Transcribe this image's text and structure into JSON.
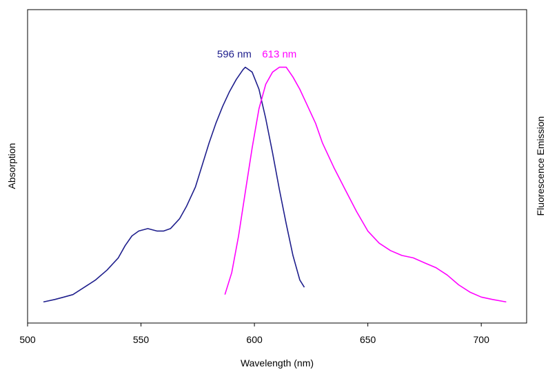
{
  "chart_data": {
    "type": "line",
    "title": "",
    "xlabel": "Wavelength (nm)",
    "ylabel": "Absorption",
    "ylabel_right": "Fluorescence Emission",
    "xlim": [
      500,
      720
    ],
    "ylim": [
      0,
      1
    ],
    "x_ticks": [
      "500",
      "550",
      "600",
      "650",
      "700"
    ],
    "grid": false,
    "legend": "none",
    "series": [
      {
        "color": "#1e1e8c",
        "axis": "left",
        "peak_label": "596 nm",
        "points": [
          [
            507,
            0.03
          ],
          [
            512,
            0.04
          ],
          [
            516,
            0.05
          ],
          [
            520,
            0.06
          ],
          [
            525,
            0.09
          ],
          [
            530,
            0.12
          ],
          [
            535,
            0.16
          ],
          [
            540,
            0.21
          ],
          [
            543,
            0.26
          ],
          [
            546,
            0.3
          ],
          [
            549,
            0.32
          ],
          [
            553,
            0.33
          ],
          [
            557,
            0.32
          ],
          [
            560,
            0.32
          ],
          [
            563,
            0.33
          ],
          [
            567,
            0.37
          ],
          [
            570,
            0.42
          ],
          [
            574,
            0.5
          ],
          [
            577,
            0.59
          ],
          [
            580,
            0.68
          ],
          [
            583,
            0.76
          ],
          [
            586,
            0.83
          ],
          [
            589,
            0.89
          ],
          [
            592,
            0.94
          ],
          [
            595,
            0.98
          ],
          [
            596,
            0.99
          ],
          [
            599,
            0.97
          ],
          [
            602,
            0.9
          ],
          [
            605,
            0.78
          ],
          [
            608,
            0.64
          ],
          [
            611,
            0.49
          ],
          [
            614,
            0.35
          ],
          [
            617,
            0.22
          ],
          [
            620,
            0.12
          ],
          [
            622,
            0.09
          ]
        ]
      },
      {
        "color": "#ff00ff",
        "axis": "right",
        "peak_label": "613 nm",
        "points": [
          [
            587,
            0.06
          ],
          [
            590,
            0.15
          ],
          [
            593,
            0.3
          ],
          [
            596,
            0.48
          ],
          [
            599,
            0.66
          ],
          [
            602,
            0.82
          ],
          [
            605,
            0.92
          ],
          [
            608,
            0.97
          ],
          [
            611,
            0.99
          ],
          [
            614,
            0.99
          ],
          [
            617,
            0.95
          ],
          [
            620,
            0.9
          ],
          [
            623,
            0.84
          ],
          [
            627,
            0.76
          ],
          [
            630,
            0.68
          ],
          [
            635,
            0.58
          ],
          [
            640,
            0.49
          ],
          [
            645,
            0.4
          ],
          [
            650,
            0.32
          ],
          [
            655,
            0.27
          ],
          [
            660,
            0.24
          ],
          [
            665,
            0.22
          ],
          [
            670,
            0.21
          ],
          [
            675,
            0.19
          ],
          [
            680,
            0.17
          ],
          [
            685,
            0.14
          ],
          [
            690,
            0.1
          ],
          [
            695,
            0.07
          ],
          [
            700,
            0.05
          ],
          [
            705,
            0.04
          ],
          [
            711,
            0.03
          ]
        ]
      }
    ]
  }
}
